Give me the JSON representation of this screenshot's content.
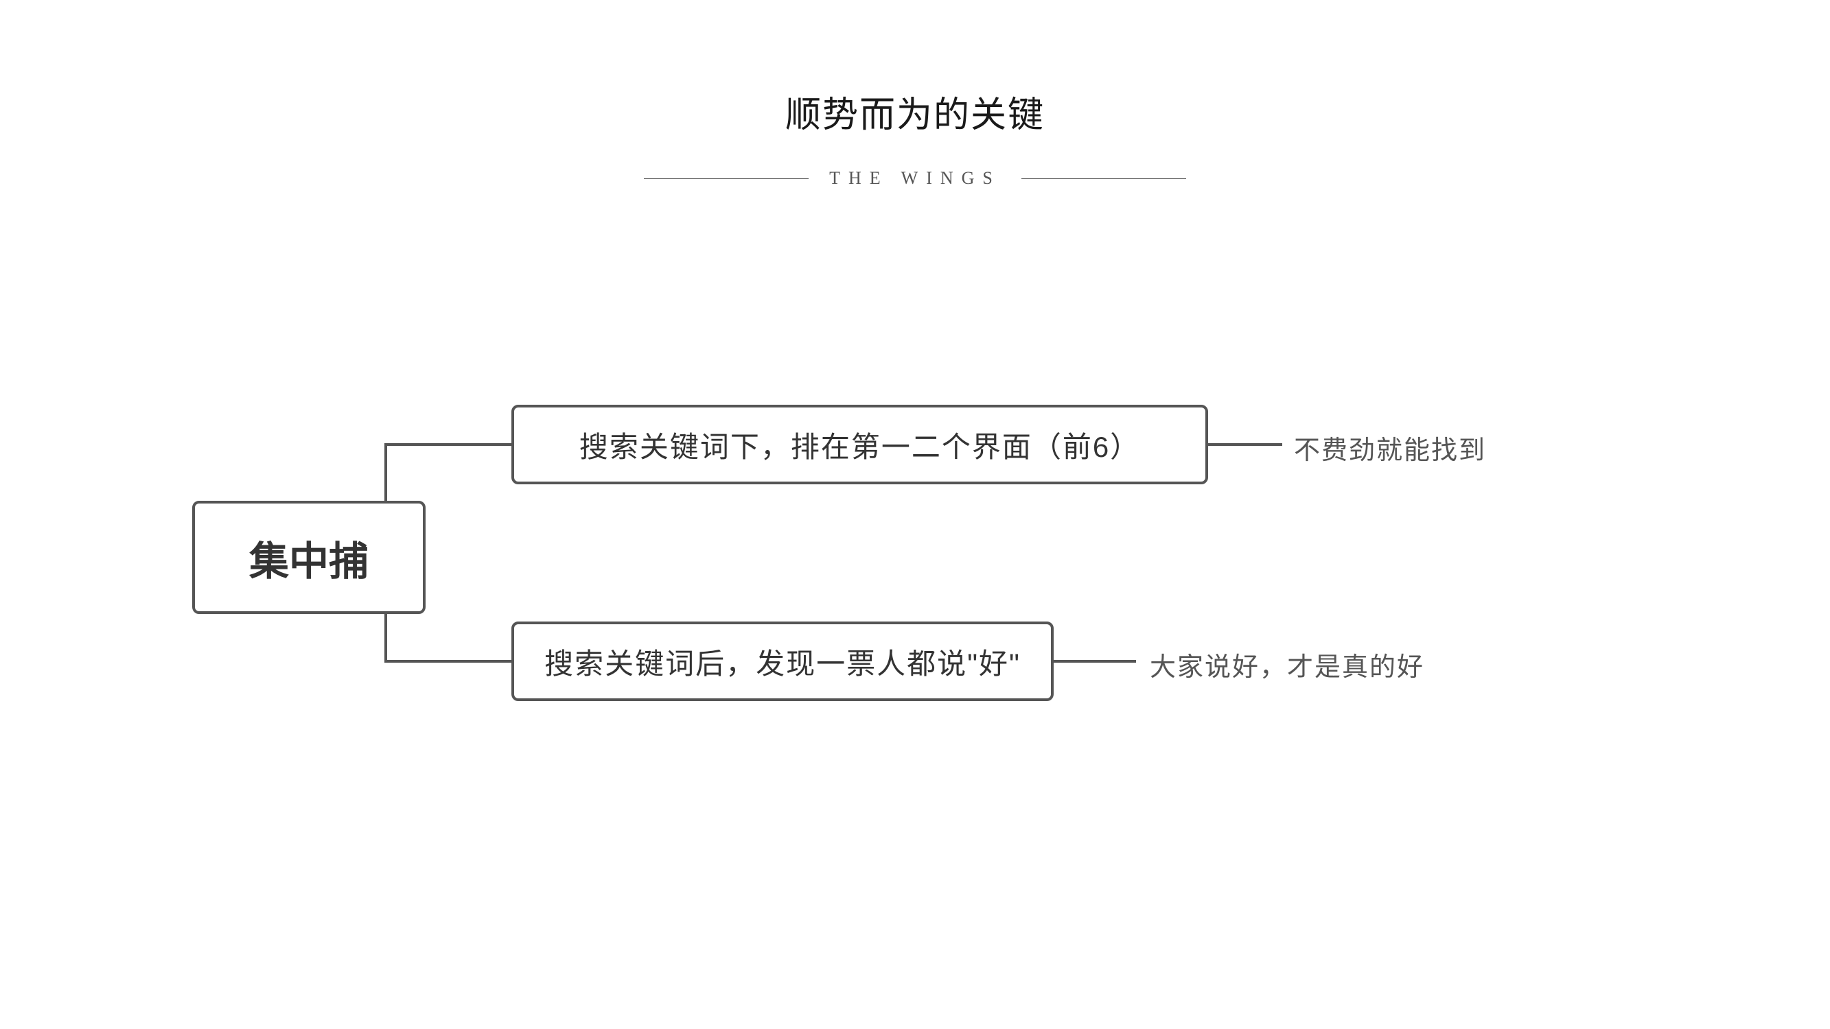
{
  "title": "顺势而为的关键",
  "subtitle": "THE WINGS",
  "diagram": {
    "root": {
      "label": "集中捕"
    },
    "branches": [
      {
        "label": "搜索关键词下，排在第一二个界面（前6）",
        "annotation": "不费劲就能找到"
      },
      {
        "label": "搜索关键词后，发现一票人都说\"好\"",
        "annotation": "大家说好，才是真的好"
      }
    ]
  },
  "colors": {
    "background": "#ffffff",
    "text_primary": "#1a1a1a",
    "text_secondary": "#555555",
    "border": "#555555"
  },
  "styling": {
    "title_fontsize": 52,
    "subtitle_fontsize": 26,
    "subtitle_letterspacing": 12,
    "root_fontsize": 58,
    "branch_fontsize": 42,
    "annotation_fontsize": 38,
    "border_width": 4,
    "border_radius": 10,
    "subtitle_line_width": 240
  }
}
